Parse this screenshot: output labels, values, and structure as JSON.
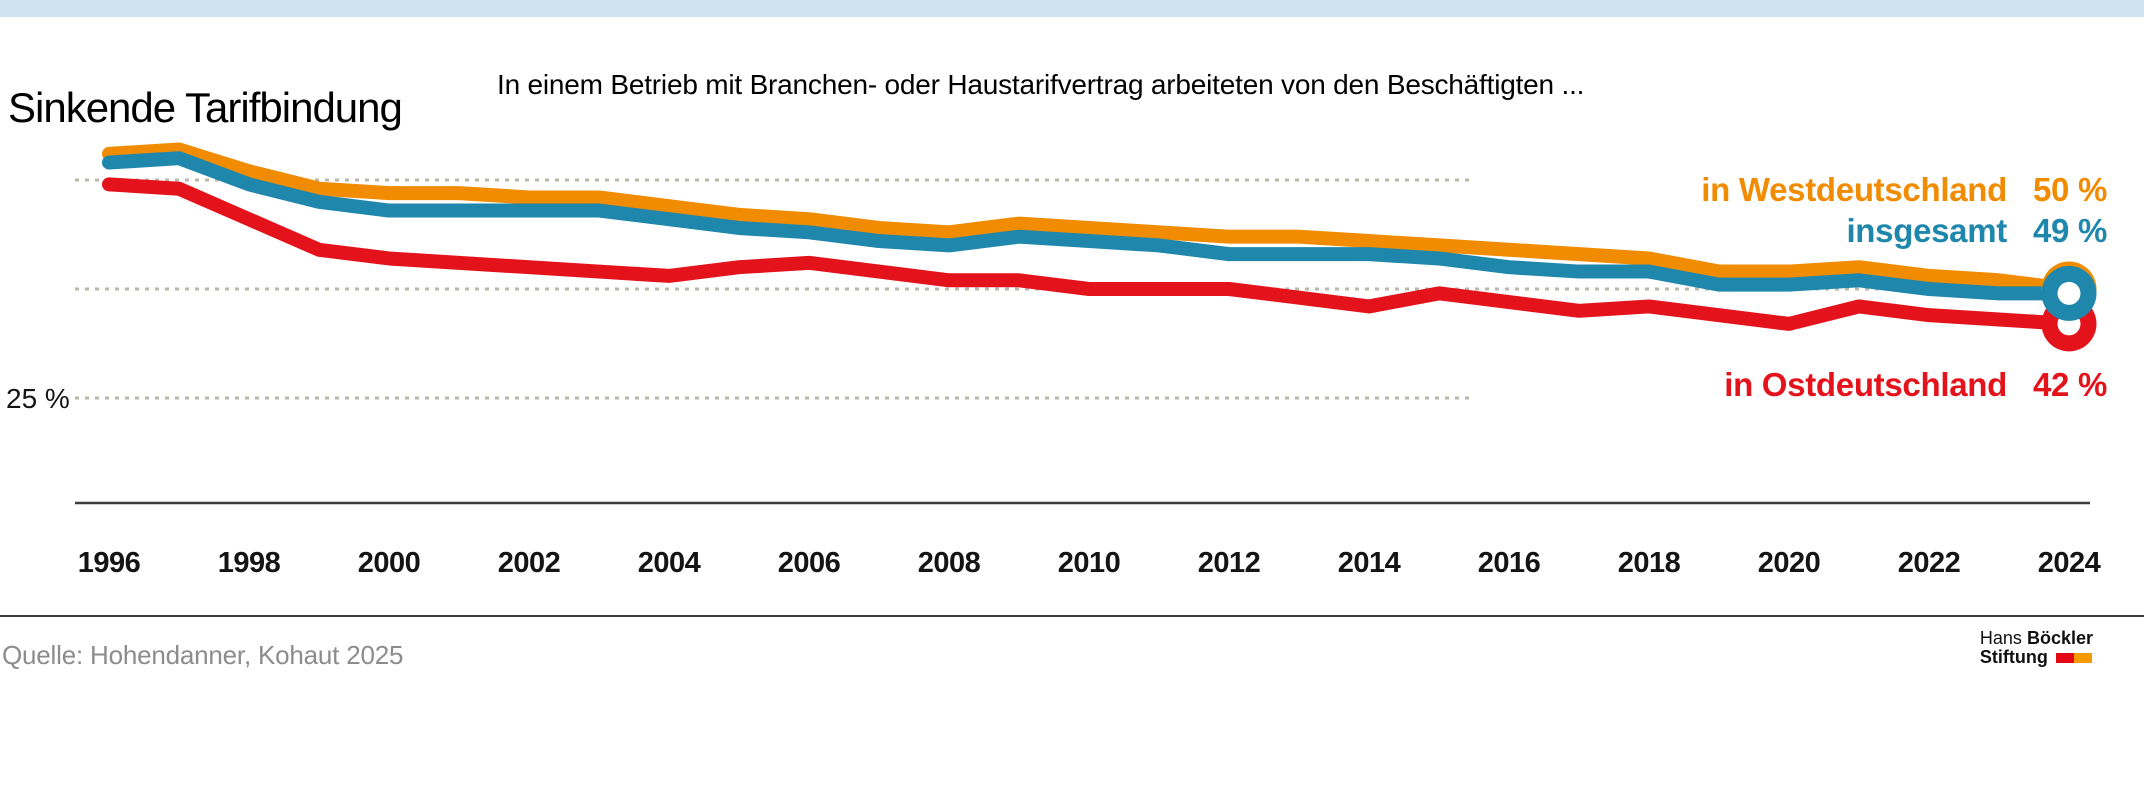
{
  "header": {
    "title": "Sinkende Tarifbindung",
    "subtitle": "In einem Betrieb mit Branchen- oder Haustarifvertrag arbeiteten von den Beschäftigten ..."
  },
  "chart_data": {
    "type": "line",
    "x": [
      1996,
      1997,
      1998,
      1999,
      2000,
      2001,
      2002,
      2003,
      2004,
      2005,
      2006,
      2007,
      2008,
      2009,
      2010,
      2011,
      2012,
      2013,
      2014,
      2015,
      2016,
      2017,
      2018,
      2019,
      2020,
      2021,
      2022,
      2023,
      2024
    ],
    "x_tick_labels": [
      "1996",
      "1998",
      "2000",
      "2002",
      "2004",
      "2006",
      "2008",
      "2010",
      "2012",
      "2014",
      "2016",
      "2018",
      "2020",
      "2022",
      "2024"
    ],
    "y_axis_label": "25 %",
    "ylim": [
      20,
      88
    ],
    "grid": "horizontal dashed gridlines at 25, 50 and 75 percent",
    "y_gridlines": [
      {
        "value": 75,
        "extent": "short"
      },
      {
        "value": 50,
        "extent": "full"
      },
      {
        "value": 25,
        "extent": "short"
      }
    ],
    "legend_position": "right, colored inline labels with end values",
    "series": [
      {
        "name": "in Westdeutschland",
        "end_label": "50 %",
        "end_value": 50,
        "color": "#F18B00",
        "values": [
          81,
          82,
          77,
          73,
          72,
          72,
          71,
          71,
          69,
          67,
          66,
          64,
          63,
          65,
          64,
          63,
          62,
          62,
          61,
          60,
          59,
          58,
          57,
          54,
          54,
          55,
          53,
          52,
          50
        ]
      },
      {
        "name": "insgesamt",
        "end_label": "49 %",
        "end_value": 49,
        "color": "#1E87AB",
        "values": [
          79,
          80,
          74,
          70,
          68,
          68,
          68,
          68,
          66,
          64,
          63,
          61,
          60,
          62,
          61,
          60,
          58,
          58,
          58,
          57,
          55,
          54,
          54,
          51,
          51,
          52,
          50,
          49,
          49
        ]
      },
      {
        "name": "in Ostdeutschland",
        "end_label": "42 %",
        "end_value": 42,
        "color": "#E4131B",
        "values": [
          74,
          73,
          66,
          59,
          57,
          56,
          55,
          54,
          53,
          55,
          56,
          54,
          52,
          52,
          50,
          50,
          50,
          48,
          46,
          49,
          47,
          45,
          46,
          44,
          42,
          46,
          44,
          43,
          42
        ]
      }
    ]
  },
  "footer": {
    "source": "Quelle: Hohendanner, Kohaut 2025",
    "logo": {
      "name_regular": "Hans",
      "name_bold": "Böckler",
      "line2": "Stiftung"
    }
  },
  "colors": {
    "top_bar": "#CFE4EE",
    "grid": "#B9B9AB",
    "axis": "#3C3C3C",
    "divider": "#3F3F3F",
    "source_text": "#8C8C8C",
    "logo_red": "#E30613",
    "logo_orange": "#F59B00"
  }
}
